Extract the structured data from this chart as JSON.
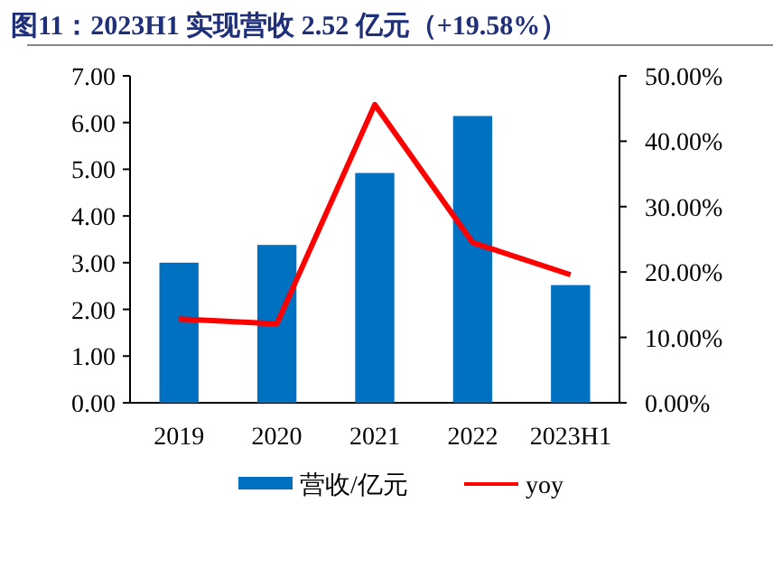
{
  "chart_data": {
    "type": "bar",
    "title": "图11：2023H1 实现营收 2.52 亿元（+19.58%）",
    "categories": [
      "2019",
      "2020",
      "2021",
      "2022",
      "2023H1"
    ],
    "series": [
      {
        "name": "营收/亿元",
        "color": "#0070c0",
        "values": [
          3.0,
          3.38,
          4.92,
          6.14,
          2.52
        ]
      },
      {
        "name": "yoy",
        "type": "line",
        "axis": "y2",
        "color": "#ff0000",
        "values": [
          12.8,
          12.1,
          45.6,
          24.5,
          19.58
        ]
      }
    ],
    "ylim": [
      0,
      7
    ],
    "yticks": [
      {
        "value": 0,
        "label": "0.00"
      },
      {
        "value": 1,
        "label": "1.00"
      },
      {
        "value": 2,
        "label": "2.00"
      },
      {
        "value": 3,
        "label": "3.00"
      },
      {
        "value": 4,
        "label": "4.00"
      },
      {
        "value": 5,
        "label": "5.00"
      },
      {
        "value": 6,
        "label": "6.00"
      },
      {
        "value": 7,
        "label": "7.00"
      }
    ],
    "y2lim": [
      0,
      50
    ],
    "y2ticks": [
      {
        "value": 0,
        "label": "0.00%"
      },
      {
        "value": 10,
        "label": "10.00%"
      },
      {
        "value": 20,
        "label": "20.00%"
      },
      {
        "value": 30,
        "label": "30.00%"
      },
      {
        "value": 40,
        "label": "40.00%"
      },
      {
        "value": 50,
        "label": "50.00%"
      }
    ],
    "legend": "bottom",
    "grid": false
  }
}
